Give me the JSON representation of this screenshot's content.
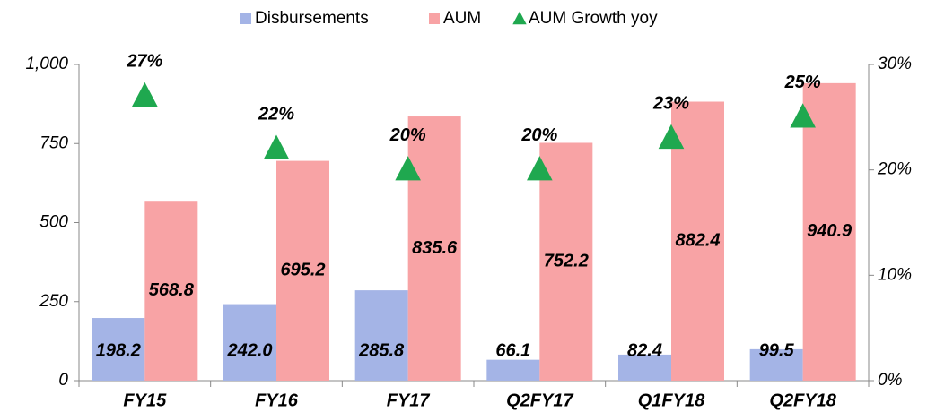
{
  "chart_data": {
    "type": "bar",
    "categories": [
      "FY15",
      "FY16",
      "FY17",
      "Q2FY17",
      "Q1FY18",
      "Q2FY18"
    ],
    "series": [
      {
        "name": "Disbursements",
        "color": "#a4b4e6",
        "values": [
          198.2,
          242.0,
          285.8,
          66.1,
          82.4,
          99.5
        ],
        "value_labels": [
          "198.2",
          "242.0",
          "285.8",
          "66.1",
          "82.4",
          "99.5"
        ]
      },
      {
        "name": "AUM",
        "color": "#f8a3a5",
        "values": [
          568.8,
          695.2,
          835.6,
          752.2,
          882.4,
          940.9
        ],
        "value_labels": [
          "568.8",
          "695.2",
          "835.6",
          "752.2",
          "882.4",
          "940.9"
        ]
      },
      {
        "name": "AUM Growth yoy",
        "type": "scatter",
        "axis": "y2",
        "color": "#1fa84f",
        "values": [
          27,
          22,
          20,
          20,
          23,
          25
        ],
        "value_labels": [
          "27%",
          "22%",
          "20%",
          "20%",
          "23%",
          "25%"
        ]
      }
    ],
    "ylim": [
      0,
      1000
    ],
    "yticks": [
      0,
      250,
      500,
      750,
      {
        "value": 1000,
        "label": "1,000"
      }
    ],
    "y2lim": [
      0,
      30
    ],
    "y2ticks": [
      {
        "value": 0,
        "label": "0%"
      },
      {
        "value": 10,
        "label": "10%"
      },
      {
        "value": 20,
        "label": "20%"
      },
      {
        "value": 30,
        "label": "30%"
      }
    ],
    "legend": "top"
  }
}
